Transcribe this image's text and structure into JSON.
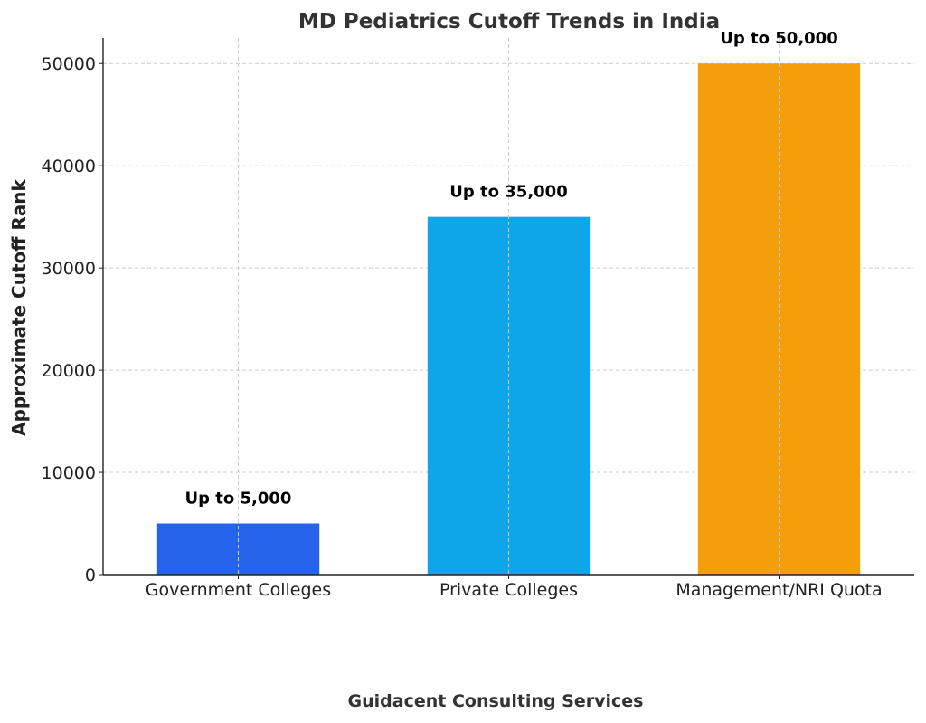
{
  "chart_data": {
    "type": "bar",
    "title": "MD Pediatrics Cutoff Trends in India",
    "xlabel": "",
    "ylabel": "Approximate Cutoff Rank",
    "categories": [
      "Government Colleges",
      "Private Colleges",
      "Management/NRI Quota"
    ],
    "values": [
      5000,
      35000,
      50000
    ],
    "data_labels": [
      "Up to 5,000",
      "Up to 35,000",
      "Up to 50,000"
    ],
    "colors": [
      "#2563eb",
      "#0ea5e9",
      "#f59e0b"
    ],
    "ylim": [
      0,
      52500
    ],
    "yticks": [
      0,
      10000,
      20000,
      30000,
      40000,
      50000
    ],
    "grid": true
  },
  "footer": {
    "text": "Guidacent Consulting Services"
  }
}
